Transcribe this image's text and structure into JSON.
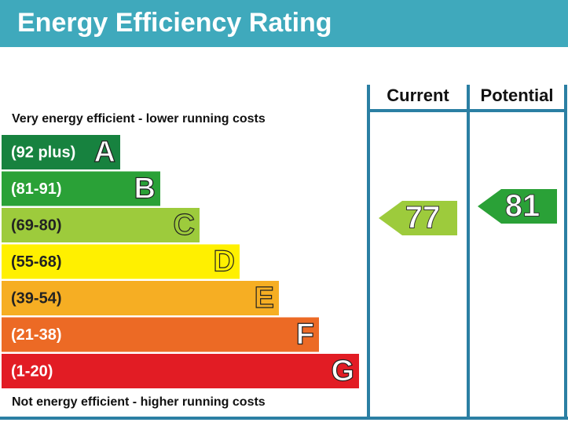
{
  "header": {
    "title": "Energy Efficiency Rating"
  },
  "columns": {
    "current": "Current",
    "potential": "Potential"
  },
  "top_note": "Very energy efficient - lower running costs",
  "bottom_note": "Not energy efficient - higher running costs",
  "bands": [
    {
      "range": "(92 plus)",
      "letter": "A",
      "color": "#17823f"
    },
    {
      "range": "(81-91)",
      "letter": "B",
      "color": "#2aa137"
    },
    {
      "range": "(69-80)",
      "letter": "C",
      "color": "#9dcb3c"
    },
    {
      "range": "(55-68)",
      "letter": "D",
      "color": "#fff000"
    },
    {
      "range": "(39-54)",
      "letter": "E",
      "color": "#f6ae23"
    },
    {
      "range": "(21-38)",
      "letter": "F",
      "color": "#ec6a25"
    },
    {
      "range": "(1-20)",
      "letter": "G",
      "color": "#e21c24"
    }
  ],
  "current": "77",
  "potential": "81"
}
